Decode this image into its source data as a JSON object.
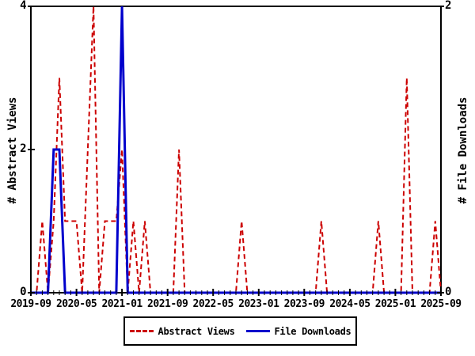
{
  "chart_data": {
    "type": "line",
    "title": "",
    "x": [
      "2019-09",
      "2019-10",
      "2019-11",
      "2019-12",
      "2020-01",
      "2020-02",
      "2020-03",
      "2020-04",
      "2020-05",
      "2020-06",
      "2020-07",
      "2020-08",
      "2020-09",
      "2020-10",
      "2020-11",
      "2020-12",
      "2021-01",
      "2021-02",
      "2021-03",
      "2021-04",
      "2021-05",
      "2021-06",
      "2021-07",
      "2021-08",
      "2021-09",
      "2021-10",
      "2021-11",
      "2021-12",
      "2022-01",
      "2022-02",
      "2022-03",
      "2022-04",
      "2022-05",
      "2022-06",
      "2022-07",
      "2022-08",
      "2022-09",
      "2022-10",
      "2022-11",
      "2022-12",
      "2023-01",
      "2023-02",
      "2023-03",
      "2023-04",
      "2023-05",
      "2023-06",
      "2023-07",
      "2023-08",
      "2023-09",
      "2023-10",
      "2023-11",
      "2023-12",
      "2024-01",
      "2024-02",
      "2024-03",
      "2024-04",
      "2024-05",
      "2024-06",
      "2024-07",
      "2024-08",
      "2024-09",
      "2024-10",
      "2024-11",
      "2024-12",
      "2025-01",
      "2025-02",
      "2025-03",
      "2025-04",
      "2025-05",
      "2025-06",
      "2025-07",
      "2025-08",
      "2025-09"
    ],
    "series": [
      {
        "name": "Abstract Views",
        "axis": "left",
        "color": "#cc0000",
        "line_style": "dashed",
        "values": [
          0,
          0,
          1,
          0,
          1,
          3,
          1,
          1,
          1,
          0,
          2,
          4,
          0,
          1,
          1,
          1,
          2,
          0,
          1,
          0,
          1,
          0,
          0,
          0,
          0,
          0,
          2,
          0,
          0,
          0,
          0,
          0,
          0,
          0,
          0,
          0,
          0,
          1,
          0,
          0,
          0,
          0,
          0,
          0,
          0,
          0,
          0,
          0,
          0,
          0,
          0,
          1,
          0,
          0,
          0,
          0,
          0,
          0,
          0,
          0,
          0,
          1,
          0,
          0,
          0,
          0,
          3,
          0,
          0,
          0,
          0,
          1,
          0
        ]
      },
      {
        "name": "File Downloads",
        "axis": "right",
        "color": "#0000cc",
        "line_style": "solid",
        "values": [
          0,
          0,
          0,
          0,
          1,
          1,
          0,
          0,
          0,
          0,
          0,
          0,
          0,
          0,
          0,
          0,
          2,
          0,
          0,
          0,
          0,
          0,
          0,
          0,
          0,
          0,
          0,
          0,
          0,
          0,
          0,
          0,
          0,
          0,
          0,
          0,
          0,
          0,
          0,
          0,
          0,
          0,
          0,
          0,
          0,
          0,
          0,
          0,
          0,
          0,
          0,
          0,
          0,
          0,
          0,
          0,
          0,
          0,
          0,
          0,
          0,
          0,
          0,
          0,
          0,
          0,
          0,
          0,
          0,
          0,
          0,
          0,
          0
        ]
      }
    ],
    "x_axis": {
      "tick_labels": [
        "2019-09",
        "2020-05",
        "2021-01",
        "2021-09",
        "2022-05",
        "2023-01",
        "2023-09",
        "2024-05",
        "2025-01",
        "2025-09"
      ],
      "months_per_major_tick": 8,
      "minor_ticks": "monthly"
    },
    "y_axis_left": {
      "label": "# Abstract Views",
      "ticks": [
        0,
        2,
        4
      ],
      "range": [
        0,
        4
      ]
    },
    "y_axis_right": {
      "label": "# File Downloads",
      "ticks": [
        0,
        2
      ],
      "range": [
        0,
        2
      ]
    },
    "legend": {
      "position": "bottom-center",
      "entries": [
        "Abstract Views",
        "File Downloads"
      ]
    },
    "grid": false
  }
}
